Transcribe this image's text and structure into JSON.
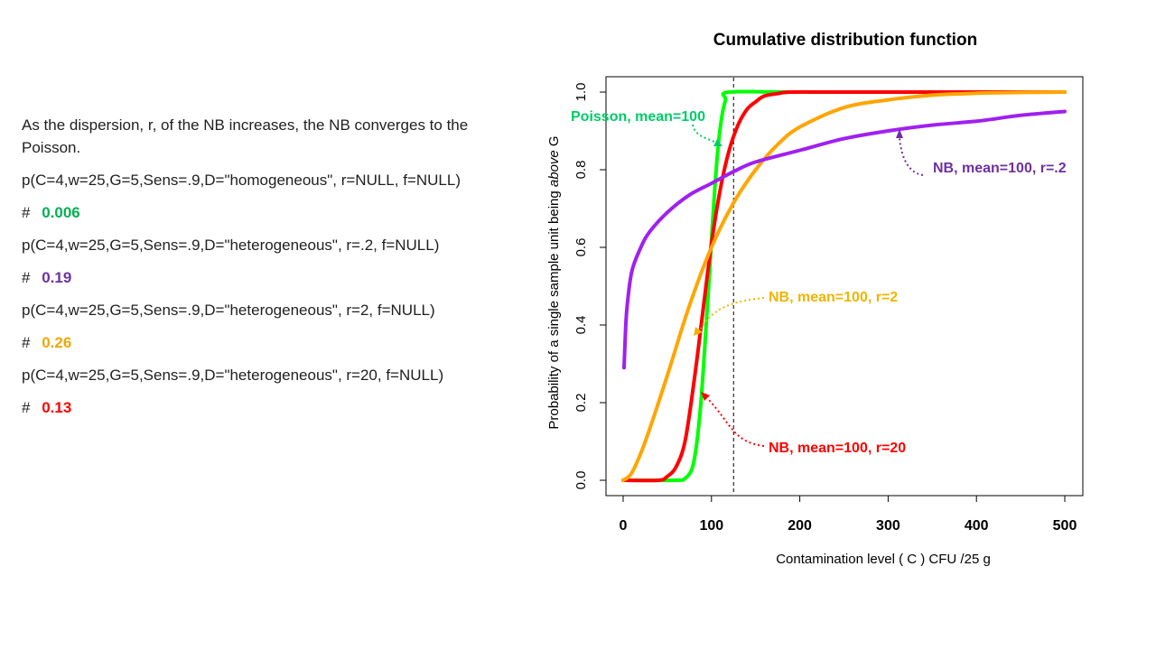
{
  "text": {
    "intro": "As the dispersion, r, of the NB increases, the NB converges to the Poisson.",
    "hash": "#",
    "calls": [
      {
        "code": "p(C=4,w=25,G=5,Sens=.9,D=\"homogeneous\", r=NULL, f=NULL)",
        "result": "0.006",
        "color": "#00b050"
      },
      {
        "code": "p(C=4,w=25,G=5,Sens=.9,D=\"heterogeneous\", r=.2, f=NULL)",
        "result": "0.19",
        "color": "#7030a0"
      },
      {
        "code": "p(C=4,w=25,G=5,Sens=.9,D=\"heterogeneous\", r=2, f=NULL)",
        "result": "0.26",
        "color": "#f0a800"
      },
      {
        "code": "p(C=4,w=25,G=5,Sens=.9,D=\"heterogeneous\", r=20, f=NULL)",
        "result": "0.13",
        "color": "#ff0000"
      }
    ]
  },
  "chart_data": {
    "type": "line",
    "title": "Cumulative distribution function",
    "xlabel": "Contamination level ( C )  CFU /25 g",
    "ylabel_prefix": "Probability of a single sample unit being ",
    "ylabel_italic": "above",
    "ylabel_suffix": " G",
    "xlim": [
      0,
      500
    ],
    "ylim": [
      0,
      1
    ],
    "x_ticks": [
      0,
      100,
      200,
      300,
      400,
      500
    ],
    "y_ticks": [
      "0.0",
      "0.2",
      "0.4",
      "0.6",
      "0.8",
      "1.0"
    ],
    "vline_x": 125,
    "series": [
      {
        "name": "Poisson, mean=100",
        "color": "#00ff00",
        "x": [
          0,
          60,
          70,
          78,
          83,
          88,
          92,
          96,
          100,
          104,
          108,
          112,
          116,
          120,
          200,
          500
        ],
        "y": [
          0,
          0,
          0.005,
          0.03,
          0.09,
          0.2,
          0.33,
          0.47,
          0.62,
          0.76,
          0.87,
          0.94,
          0.98,
          1.0,
          1.0,
          1.0
        ]
      },
      {
        "name": "NB, mean=100, r=20",
        "color": "#ff0000",
        "x": [
          0,
          40,
          50,
          60,
          70,
          80,
          90,
          100,
          110,
          120,
          130,
          140,
          150,
          160,
          175,
          190,
          250,
          500
        ],
        "y": [
          0,
          0,
          0.01,
          0.035,
          0.1,
          0.25,
          0.43,
          0.61,
          0.75,
          0.85,
          0.915,
          0.955,
          0.975,
          0.99,
          0.996,
          1.0,
          1.0,
          1.0
        ]
      },
      {
        "name": "NB, mean=100, r=2",
        "color": "#ffa500",
        "x": [
          0,
          10,
          25,
          50,
          75,
          100,
          125,
          150,
          175,
          200,
          250,
          300,
          350,
          400,
          450,
          500
        ],
        "y": [
          0,
          0.02,
          0.1,
          0.27,
          0.45,
          0.6,
          0.715,
          0.8,
          0.865,
          0.91,
          0.96,
          0.98,
          0.992,
          0.997,
          0.999,
          1.0
        ]
      },
      {
        "name": "NB, mean=100, r=.2",
        "color": "#a020f0",
        "x": [
          1,
          3,
          5,
          10,
          20,
          30,
          50,
          75,
          100,
          125,
          150,
          200,
          250,
          300,
          350,
          400,
          450,
          500
        ],
        "y": [
          0.29,
          0.4,
          0.46,
          0.54,
          0.6,
          0.64,
          0.69,
          0.735,
          0.765,
          0.795,
          0.82,
          0.85,
          0.88,
          0.9,
          0.915,
          0.925,
          0.94,
          0.95
        ]
      }
    ],
    "annotations": [
      {
        "label": "Poisson,  mean=100",
        "color": "#00cc66"
      },
      {
        "label": "NB, mean=100, r=.2",
        "color": "#7030a0"
      },
      {
        "label": "NB, mean=100, r=2",
        "color": "#f0b400"
      },
      {
        "label": "NB, mean=100, r=20",
        "color": "#ff0000"
      }
    ]
  }
}
